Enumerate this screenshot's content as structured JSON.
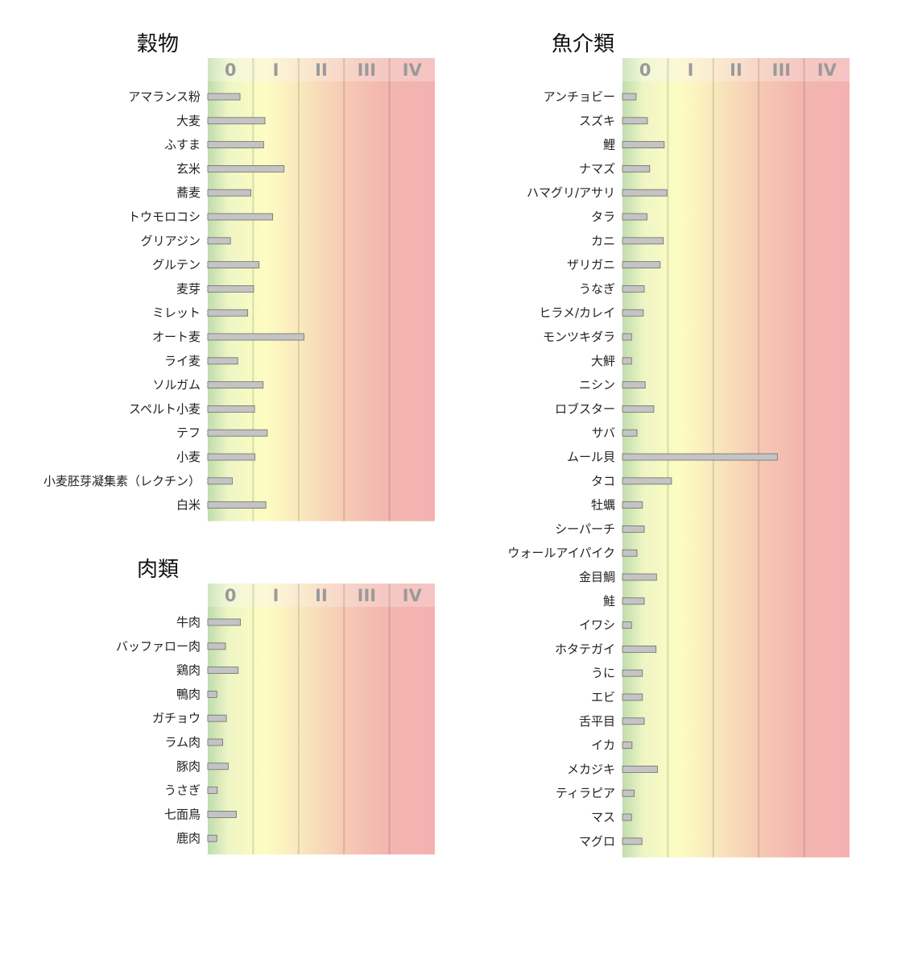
{
  "chart_data": [
    {
      "type": "bar",
      "title": "穀物",
      "scale_labels": [
        "0",
        "I",
        "II",
        "III",
        "IV"
      ],
      "xlim": [
        0,
        5
      ],
      "categories": [
        "アマランス粉",
        "大麦",
        "ふすま",
        "玄米",
        "蕎麦",
        "トウモロコシ",
        "グリアジン",
        "グルテン",
        "麦芽",
        "ミレット",
        "オート麦",
        "ライ麦",
        "ソルガム",
        "スペルト小麦",
        "テフ",
        "小麦",
        "小麦胚芽凝集素（レクチン）",
        "白米"
      ],
      "values": [
        0.71,
        1.26,
        1.23,
        1.68,
        0.95,
        1.43,
        0.5,
        1.13,
        1.01,
        0.88,
        2.12,
        0.66,
        1.22,
        1.03,
        1.31,
        1.04,
        0.54,
        1.28
      ]
    },
    {
      "type": "bar",
      "title": "肉類",
      "scale_labels": [
        "0",
        "I",
        "II",
        "III",
        "IV"
      ],
      "xlim": [
        0,
        5
      ],
      "categories": [
        "牛肉",
        "バッファロー肉",
        "鶏肉",
        "鴨肉",
        "ガチョウ",
        "ラム肉",
        "豚肉",
        "うさぎ",
        "七面鳥",
        "鹿肉"
      ],
      "values": [
        0.72,
        0.39,
        0.67,
        0.2,
        0.41,
        0.33,
        0.45,
        0.21,
        0.63,
        0.2
      ]
    },
    {
      "type": "bar",
      "title": "魚介類",
      "scale_labels": [
        "0",
        "I",
        "II",
        "III",
        "IV"
      ],
      "xlim": [
        0,
        5
      ],
      "categories": [
        "アンチョビー",
        "スズキ",
        "鯉",
        "ナマズ",
        "ハマグリ/アサリ",
        "タラ",
        "カニ",
        "ザリガニ",
        "うなぎ",
        "ヒラメ/カレイ",
        "モンツキダラ",
        "大鮃",
        "ニシン",
        "ロブスター",
        "サバ",
        "ムール貝",
        "タコ",
        "牡蠣",
        "シーパーチ",
        "ウォールアイパイク",
        "金目鯛",
        "鮭",
        "イワシ",
        "ホタテガイ",
        "うに",
        "エビ",
        "舌平目",
        "イカ",
        "メカジキ",
        "ティラピア",
        "マス",
        "マグロ"
      ],
      "values": [
        0.3,
        0.55,
        0.92,
        0.6,
        0.98,
        0.54,
        0.9,
        0.83,
        0.48,
        0.46,
        0.2,
        0.2,
        0.5,
        0.69,
        0.32,
        3.41,
        1.08,
        0.44,
        0.48,
        0.32,
        0.75,
        0.48,
        0.2,
        0.74,
        0.44,
        0.44,
        0.48,
        0.21,
        0.77,
        0.26,
        0.2,
        0.43
      ]
    }
  ]
}
